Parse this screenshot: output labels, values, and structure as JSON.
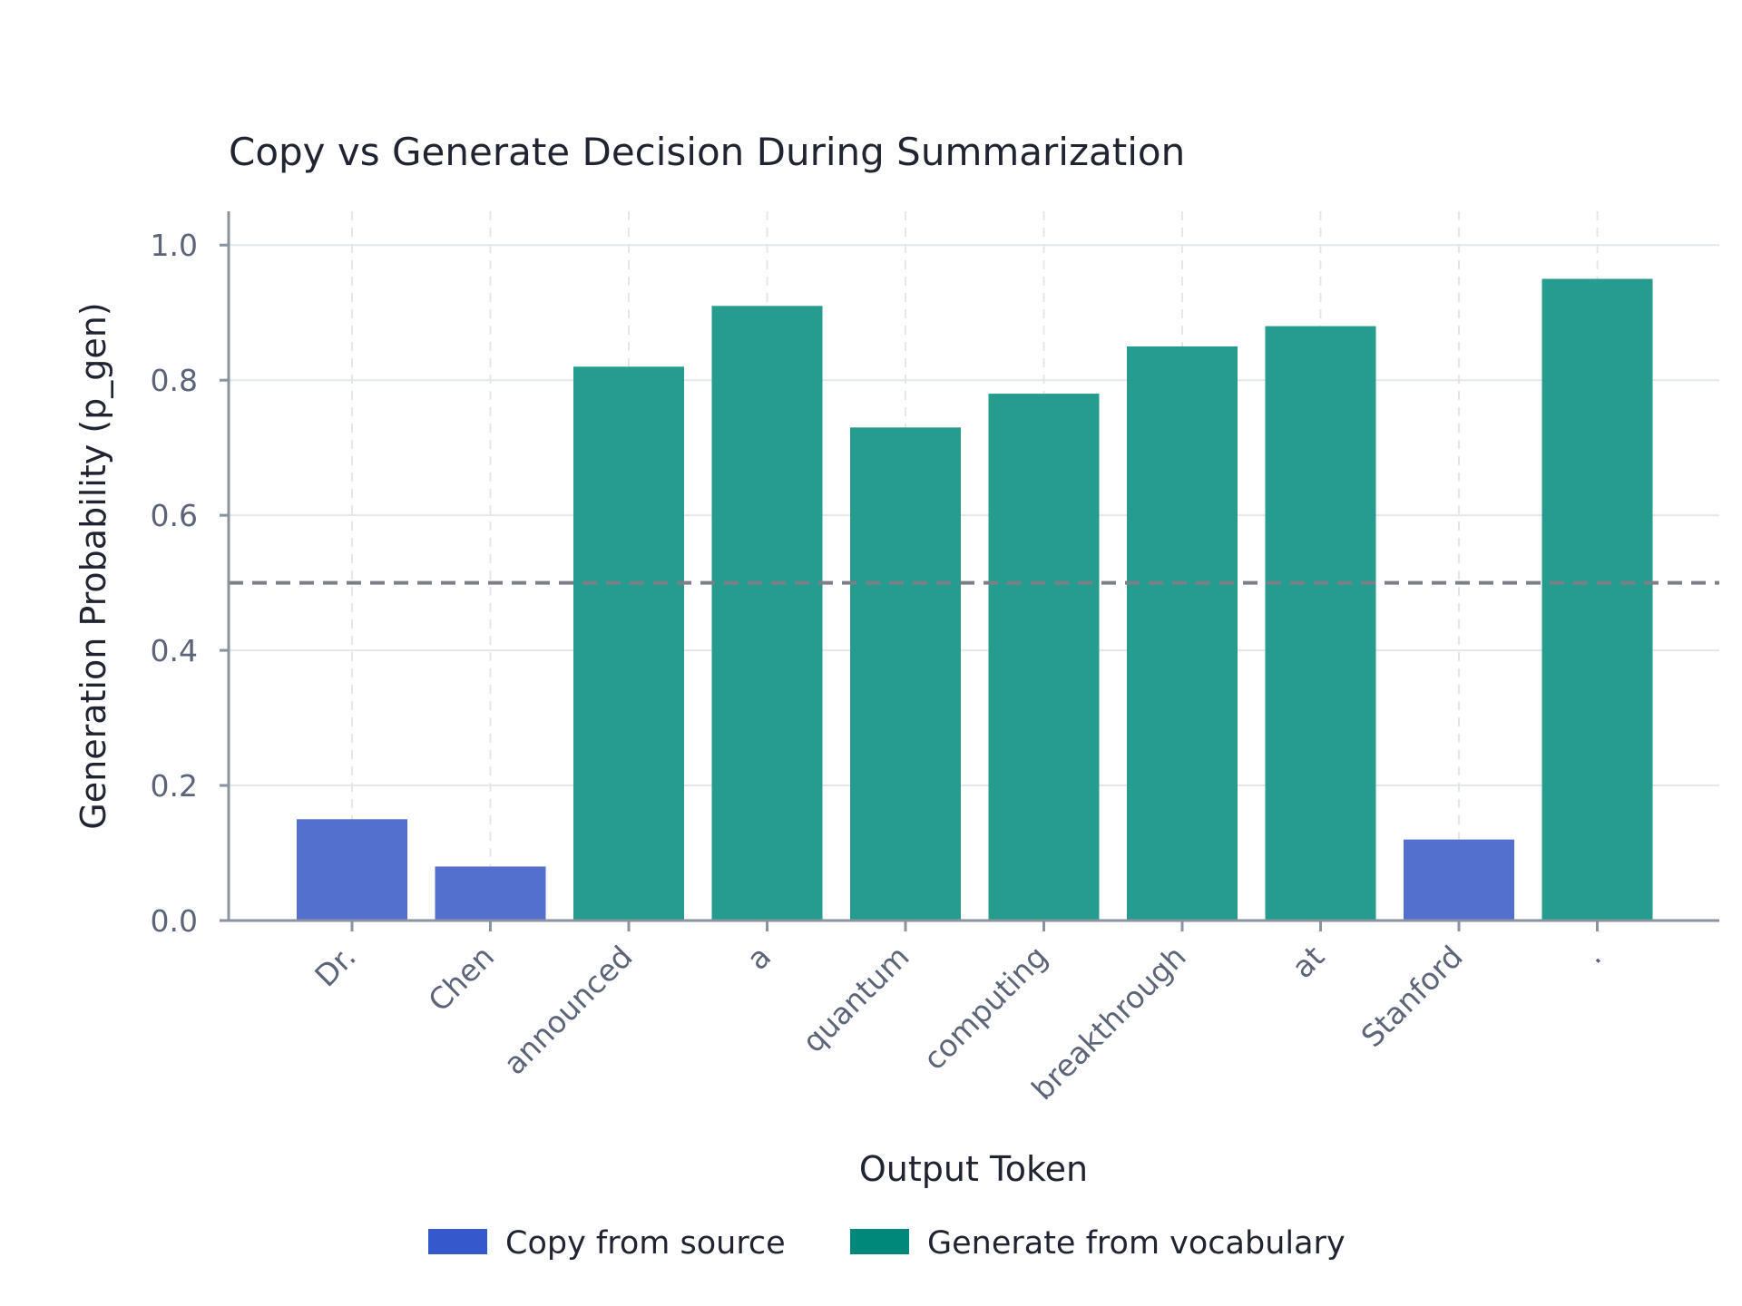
{
  "chart_data": {
    "type": "bar",
    "title": "Copy vs Generate Decision During Summarization",
    "xlabel": "Output Token",
    "ylabel": "Generation Probability (p_gen)",
    "ylim": [
      0,
      1.05
    ],
    "yticks": [
      0.0,
      0.2,
      0.4,
      0.6,
      0.8,
      1.0
    ],
    "ytick_labels": [
      "0.0",
      "0.2",
      "0.4",
      "0.6",
      "0.8",
      "1.0"
    ],
    "categories": [
      "Dr.",
      "Chen",
      "announced",
      "a",
      "quantum",
      "computing",
      "breakthrough",
      "at",
      "Stanford",
      "."
    ],
    "values": [
      0.15,
      0.08,
      0.82,
      0.91,
      0.73,
      0.78,
      0.85,
      0.88,
      0.12,
      0.95
    ],
    "bar_class": [
      "copy",
      "copy",
      "generate",
      "generate",
      "generate",
      "generate",
      "generate",
      "generate",
      "copy",
      "generate"
    ],
    "threshold": 0.5,
    "grid": true,
    "legend_position": "bottom-center",
    "legend": [
      {
        "key": "copy",
        "label": "Copy from source",
        "color": "#3558cc"
      },
      {
        "key": "generate",
        "label": "Generate from vocabulary",
        "color": "#00897b"
      }
    ],
    "colors": {
      "copy_bar": "#5470cf",
      "generate_bar": "#259c8e",
      "threshold_line": "#7a7f88",
      "grid": "#e3e7ec",
      "axis": "#8a93a0"
    }
  }
}
